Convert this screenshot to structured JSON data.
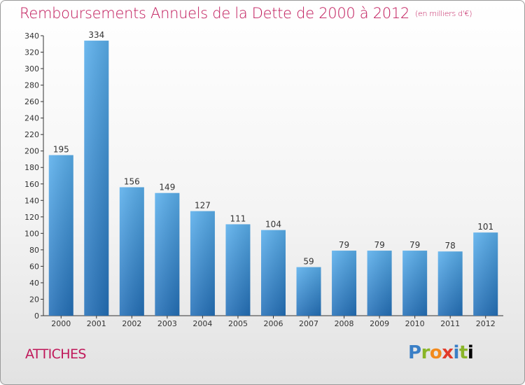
{
  "chart_data": {
    "type": "bar",
    "title": "Remboursements Annuels de la Dette de 2000 à 2012",
    "subtitle": "(en milliers d'€)",
    "categories": [
      "2000",
      "2001",
      "2002",
      "2003",
      "2004",
      "2005",
      "2006",
      "2007",
      "2008",
      "2009",
      "2010",
      "2011",
      "2012"
    ],
    "values": [
      195,
      334,
      156,
      149,
      127,
      111,
      104,
      59,
      79,
      79,
      79,
      78,
      101
    ],
    "ylim": [
      0,
      340
    ],
    "yticks": [
      0,
      20,
      40,
      60,
      80,
      100,
      120,
      140,
      160,
      180,
      200,
      220,
      240,
      260,
      280,
      300,
      320,
      340
    ],
    "grid": false,
    "bar_color_top": "#5aafec",
    "bar_color_bottom": "#2470b8"
  },
  "commune": "ATTICHES",
  "logo": {
    "letters": [
      "P",
      "r",
      "o",
      "x",
      "i",
      "t",
      "i"
    ]
  }
}
